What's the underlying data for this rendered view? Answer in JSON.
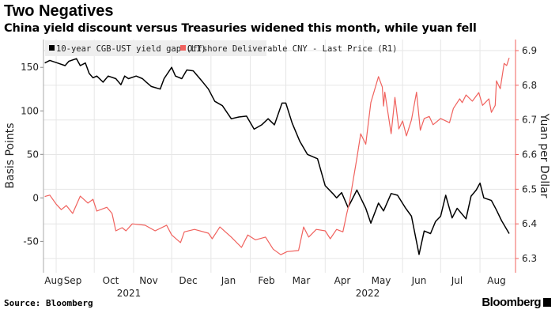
{
  "title": "Two Negatives",
  "subtitle": "China yield discount versus Treasuries widened this month, while yuan fell",
  "source": "Source: Bloomberg",
  "logo_text": "Bloomberg",
  "chart_data": {
    "type": "line",
    "title": "Two Negatives",
    "subtitle": "China yield discount versus Treasuries widened this month, while yuan fell",
    "xlim": [
      "2021-08-22",
      "2022-08-29"
    ],
    "x_tick_labels": [
      "Aug",
      "Sep",
      "Oct",
      "Nov",
      "Dec",
      "Jan",
      "Feb",
      "Mar",
      "Apr",
      "May",
      "Jun",
      "Jul",
      "Aug"
    ],
    "x_year_labels": [
      "2021",
      "2022"
    ],
    "y_left": {
      "label": "Basis Points",
      "ticks": [
        "150",
        "100",
        "50",
        "0",
        "-50"
      ],
      "lim": [
        -86,
        182
      ]
    },
    "y_right": {
      "label": "Yuan per Dollar",
      "ticks": [
        "6.9",
        "6.8",
        "6.7",
        "6.6",
        "6.5",
        "6.4",
        "6.3"
      ],
      "lim": [
        6.259,
        6.932
      ]
    },
    "grid": true,
    "legend_position": "top-left",
    "series": [
      {
        "name": "10-year CGB-UST yield gap (L1)",
        "axis": "left",
        "color": "#000000",
        "points": [
          [
            "2021-08-23",
            155
          ],
          [
            "2021-08-27",
            158
          ],
          [
            "2021-09-02",
            155
          ],
          [
            "2021-09-08",
            152
          ],
          [
            "2021-09-11",
            157
          ],
          [
            "2021-09-17",
            160
          ],
          [
            "2021-09-20",
            152
          ],
          [
            "2021-09-24",
            155
          ],
          [
            "2021-09-27",
            143
          ],
          [
            "2021-09-30",
            138
          ],
          [
            "2021-10-03",
            140
          ],
          [
            "2021-10-08",
            133
          ],
          [
            "2021-10-12",
            140
          ],
          [
            "2021-10-18",
            137
          ],
          [
            "2021-10-22",
            130
          ],
          [
            "2021-10-25",
            140
          ],
          [
            "2021-10-28",
            137
          ],
          [
            "2021-11-03",
            140
          ],
          [
            "2021-11-08",
            137
          ],
          [
            "2021-11-11",
            133
          ],
          [
            "2021-11-15",
            128
          ],
          [
            "2021-11-22",
            125
          ],
          [
            "2021-11-25",
            137
          ],
          [
            "2021-12-01",
            150
          ],
          [
            "2021-12-04",
            140
          ],
          [
            "2021-12-09",
            137
          ],
          [
            "2021-12-13",
            147
          ],
          [
            "2021-12-18",
            146
          ],
          [
            "2021-12-25",
            134
          ],
          [
            "2021-12-30",
            125
          ],
          [
            "2022-01-04",
            111
          ],
          [
            "2022-01-10",
            106
          ],
          [
            "2022-01-17",
            91
          ],
          [
            "2022-01-23",
            93
          ],
          [
            "2022-01-29",
            94
          ],
          [
            "2022-02-04",
            79
          ],
          [
            "2022-02-10",
            84
          ],
          [
            "2022-02-15",
            91
          ],
          [
            "2022-02-20",
            84
          ],
          [
            "2022-02-26",
            109
          ],
          [
            "2022-03-01",
            109
          ],
          [
            "2022-03-06",
            86
          ],
          [
            "2022-03-12",
            65
          ],
          [
            "2022-03-18",
            50
          ],
          [
            "2022-03-26",
            45
          ],
          [
            "2022-04-01",
            14
          ],
          [
            "2022-04-07",
            5
          ],
          [
            "2022-04-10",
            0
          ],
          [
            "2022-04-14",
            6
          ],
          [
            "2022-04-19",
            -11
          ],
          [
            "2022-04-26",
            9
          ],
          [
            "2022-05-03",
            -12
          ],
          [
            "2022-05-07",
            -29
          ],
          [
            "2022-05-13",
            -6
          ],
          [
            "2022-05-17",
            -15
          ],
          [
            "2022-05-23",
            5
          ],
          [
            "2022-05-28",
            3
          ],
          [
            "2022-06-03",
            -11
          ],
          [
            "2022-06-08",
            -21
          ],
          [
            "2022-06-14",
            -65
          ],
          [
            "2022-06-18",
            -38
          ],
          [
            "2022-06-23",
            -41
          ],
          [
            "2022-06-27",
            -27
          ],
          [
            "2022-07-01",
            -21
          ],
          [
            "2022-07-05",
            3
          ],
          [
            "2022-07-10",
            -23
          ],
          [
            "2022-07-14",
            -12
          ],
          [
            "2022-07-21",
            -24
          ],
          [
            "2022-07-25",
            2
          ],
          [
            "2022-07-29",
            9
          ],
          [
            "2022-08-01",
            17
          ],
          [
            "2022-08-04",
            0
          ],
          [
            "2022-08-10",
            -3
          ],
          [
            "2022-08-14",
            -14
          ],
          [
            "2022-08-18",
            -26
          ],
          [
            "2022-08-24",
            -41
          ]
        ]
      },
      {
        "name": "Offshore Deliverable CNY - Last Price (R1)",
        "axis": "right",
        "color": "#f0625e",
        "points": [
          [
            "2021-08-23",
            6.479
          ],
          [
            "2021-08-27",
            6.483
          ],
          [
            "2021-09-01",
            6.457
          ],
          [
            "2021-09-05",
            6.441
          ],
          [
            "2021-09-09",
            6.453
          ],
          [
            "2021-09-14",
            6.43
          ],
          [
            "2021-09-20",
            6.48
          ],
          [
            "2021-09-26",
            6.46
          ],
          [
            "2021-09-30",
            6.471
          ],
          [
            "2021-10-03",
            6.437
          ],
          [
            "2021-10-11",
            6.448
          ],
          [
            "2021-10-15",
            6.43
          ],
          [
            "2021-10-18",
            6.38
          ],
          [
            "2021-10-23",
            6.389
          ],
          [
            "2021-10-26",
            6.38
          ],
          [
            "2021-10-31",
            6.4
          ],
          [
            "2021-11-10",
            6.396
          ],
          [
            "2021-11-18",
            6.38
          ],
          [
            "2021-11-27",
            6.396
          ],
          [
            "2021-12-01",
            6.368
          ],
          [
            "2021-12-08",
            6.346
          ],
          [
            "2021-12-11",
            6.377
          ],
          [
            "2021-12-19",
            6.384
          ],
          [
            "2021-12-30",
            6.373
          ],
          [
            "2022-01-02",
            6.357
          ],
          [
            "2022-01-08",
            6.391
          ],
          [
            "2022-01-17",
            6.362
          ],
          [
            "2022-01-25",
            6.332
          ],
          [
            "2022-01-30",
            6.368
          ],
          [
            "2022-02-05",
            6.354
          ],
          [
            "2022-02-13",
            6.362
          ],
          [
            "2022-02-19",
            6.327
          ],
          [
            "2022-02-25",
            6.311
          ],
          [
            "2022-03-02",
            6.32
          ],
          [
            "2022-03-11",
            6.323
          ],
          [
            "2022-03-15",
            6.391
          ],
          [
            "2022-03-19",
            6.362
          ],
          [
            "2022-03-25",
            6.384
          ],
          [
            "2022-04-01",
            6.38
          ],
          [
            "2022-04-05",
            6.357
          ],
          [
            "2022-04-10",
            6.384
          ],
          [
            "2022-04-15",
            6.377
          ],
          [
            "2022-04-18",
            6.43
          ],
          [
            "2022-04-20",
            6.46
          ],
          [
            "2022-04-26",
            6.59
          ],
          [
            "2022-04-29",
            6.66
          ],
          [
            "2022-05-03",
            6.63
          ],
          [
            "2022-05-07",
            6.75
          ],
          [
            "2022-05-13",
            6.825
          ],
          [
            "2022-05-16",
            6.795
          ],
          [
            "2022-05-17",
            6.74
          ],
          [
            "2022-05-18",
            6.78
          ],
          [
            "2022-05-23",
            6.66
          ],
          [
            "2022-05-26",
            6.765
          ],
          [
            "2022-05-29",
            6.674
          ],
          [
            "2022-06-01",
            6.697
          ],
          [
            "2022-06-04",
            6.654
          ],
          [
            "2022-06-08",
            6.7
          ],
          [
            "2022-06-12",
            6.78
          ],
          [
            "2022-06-15",
            6.67
          ],
          [
            "2022-06-18",
            6.704
          ],
          [
            "2022-06-22",
            6.71
          ],
          [
            "2022-06-25",
            6.686
          ],
          [
            "2022-07-01",
            6.704
          ],
          [
            "2022-07-08",
            6.692
          ],
          [
            "2022-07-11",
            6.733
          ],
          [
            "2022-07-16",
            6.761
          ],
          [
            "2022-07-18",
            6.75
          ],
          [
            "2022-07-21",
            6.772
          ],
          [
            "2022-07-26",
            6.754
          ],
          [
            "2022-07-31",
            6.779
          ],
          [
            "2022-08-03",
            6.742
          ],
          [
            "2022-08-08",
            6.761
          ],
          [
            "2022-08-10",
            6.722
          ],
          [
            "2022-08-13",
            6.742
          ],
          [
            "2022-08-14",
            6.813
          ],
          [
            "2022-08-17",
            6.79
          ],
          [
            "2022-08-20",
            6.863
          ],
          [
            "2022-08-22",
            6.857
          ],
          [
            "2022-08-24",
            6.879
          ]
        ]
      }
    ]
  }
}
